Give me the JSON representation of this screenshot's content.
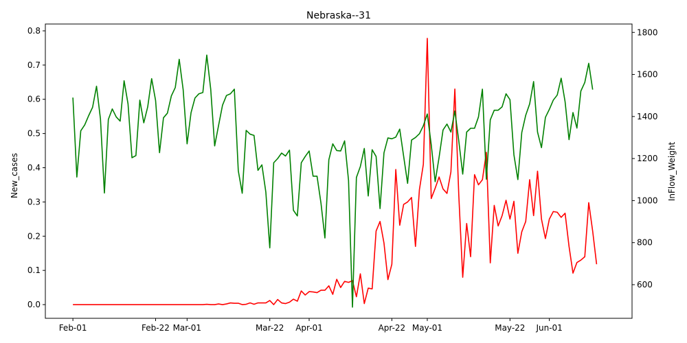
{
  "chart_data": {
    "type": "line",
    "title": "Nebraska--31",
    "ylabel_left": "New_cases",
    "ylabel_right": "InFlow_Weight",
    "ylim_left": [
      -0.04,
      0.82
    ],
    "ylim_right": [
      440,
      1840
    ],
    "xlim": [
      "2020-01-25",
      "2020-06-22"
    ],
    "x_ticks": [
      {
        "date": "2020-02-01",
        "label": "Feb-01"
      },
      {
        "date": "2020-02-22",
        "label": "Feb-22"
      },
      {
        "date": "2020-03-01",
        "label": "Mar-01"
      },
      {
        "date": "2020-03-22",
        "label": "Mar-22"
      },
      {
        "date": "2020-04-01",
        "label": "Apr-01"
      },
      {
        "date": "2020-04-22",
        "label": "Apr-22"
      },
      {
        "date": "2020-05-01",
        "label": "May-01"
      },
      {
        "date": "2020-05-22",
        "label": "May-22"
      },
      {
        "date": "2020-06-01",
        "label": "Jun-01"
      }
    ],
    "y_ticks_left": [
      0.0,
      0.1,
      0.2,
      0.3,
      0.4,
      0.5,
      0.6,
      0.7,
      0.8
    ],
    "y_ticks_left_labels": [
      "0.0",
      "0.1",
      "0.2",
      "0.3",
      "0.4",
      "0.5",
      "0.6",
      "0.7",
      "0.8"
    ],
    "y_ticks_right": [
      600,
      800,
      1000,
      1200,
      1400,
      1600,
      1800
    ],
    "y_ticks_right_labels": [
      "600",
      "800",
      "1000",
      "1200",
      "1400",
      "1600",
      "1800"
    ],
    "x_start": "2020-02-01",
    "series": [
      {
        "axis": "left",
        "color": "#ff0000",
        "values": [
          0,
          0,
          0,
          0,
          0,
          0,
          0,
          0,
          0,
          0,
          0,
          0,
          0,
          0,
          0,
          0,
          0,
          0,
          0,
          0,
          0,
          0,
          0,
          0,
          0,
          0,
          0,
          0,
          0,
          0,
          0,
          0,
          0,
          0,
          0.001,
          0,
          0,
          0.002,
          0,
          0.002,
          0.005,
          0.004,
          0.004,
          0,
          0.001,
          0.005,
          0.001,
          0.005,
          0.005,
          0.005,
          0.012,
          0,
          0.015,
          0.005,
          0.003,
          0.007,
          0.016,
          0.01,
          0.04,
          0.028,
          0.038,
          0.037,
          0.035,
          0.042,
          0.042,
          0.055,
          0.03,
          0.074,
          0.05,
          0.068,
          0.065,
          0.07,
          0.023,
          0.09,
          0.003,
          0.048,
          0.046,
          0.215,
          0.243,
          0.18,
          0.073,
          0.118,
          0.395,
          0.232,
          0.293,
          0.3,
          0.313,
          0.17,
          0.336,
          0.41,
          0.778,
          0.31,
          0.34,
          0.373,
          0.338,
          0.325,
          0.388,
          0.63,
          0.32,
          0.08,
          0.237,
          0.14,
          0.38,
          0.35,
          0.365,
          0.445,
          0.122,
          0.29,
          0.23,
          0.26,
          0.305,
          0.25,
          0.302,
          0.15,
          0.213,
          0.243,
          0.365,
          0.26,
          0.39,
          0.25,
          0.193,
          0.25,
          0.272,
          0.27,
          0.255,
          0.267,
          0.17,
          0.092,
          0.123,
          0.13,
          0.14,
          0.298,
          0.215,
          0.118
        ]
      },
      {
        "axis": "right",
        "color": "#008000",
        "values": [
          1490,
          1112,
          1332,
          1360,
          1404,
          1444,
          1544,
          1388,
          1036,
          1386,
          1436,
          1398,
          1378,
          1570,
          1460,
          1204,
          1214,
          1478,
          1370,
          1446,
          1580,
          1476,
          1228,
          1394,
          1416,
          1498,
          1538,
          1672,
          1528,
          1270,
          1418,
          1488,
          1508,
          1514,
          1692,
          1530,
          1260,
          1358,
          1454,
          1500,
          1508,
          1530,
          1142,
          1035,
          1334,
          1316,
          1310,
          1144,
          1170,
          1040,
          775,
          1180,
          1200,
          1226,
          1212,
          1240,
          954,
          927,
          1180,
          1210,
          1236,
          1116,
          1116,
          988,
          822,
          1194,
          1270,
          1238,
          1236,
          1284,
          1096,
          493,
          1110,
          1162,
          1248,
          1022,
          1242,
          1210,
          962,
          1227,
          1298,
          1294,
          1302,
          1340,
          1210,
          1082,
          1288,
          1300,
          1318,
          1356,
          1412,
          1266,
          1090,
          1206,
          1336,
          1364,
          1326,
          1426,
          1284,
          1126,
          1326,
          1344,
          1344,
          1398,
          1530,
          1102,
          1384,
          1430,
          1430,
          1446,
          1508,
          1480,
          1218,
          1100,
          1324,
          1406,
          1460,
          1566,
          1326,
          1252,
          1396,
          1434,
          1478,
          1502,
          1582,
          1470,
          1290,
          1419,
          1345,
          1521,
          1562,
          1653,
          1528
        ]
      }
    ]
  }
}
